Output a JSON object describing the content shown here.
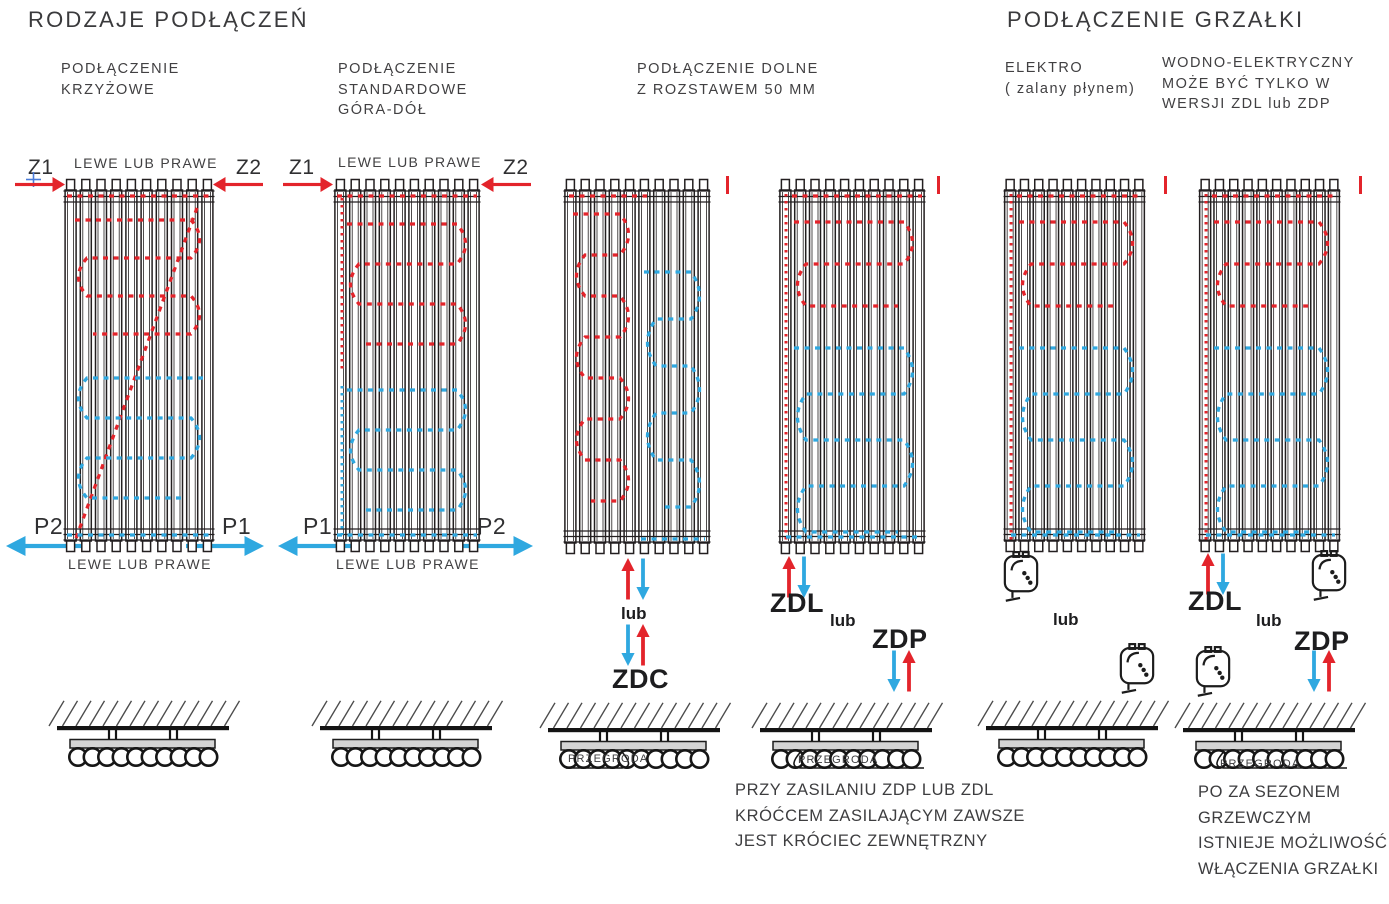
{
  "page": {
    "title_left": "RODZAJE PODŁĄCZEŃ",
    "title_right": "PODŁĄCZENIE GRZAŁKI"
  },
  "sections": {
    "krzyzowe": {
      "title": "PODŁĄCZENIE\nKRZYŻOWE",
      "top_label": "LEWE LUB PRAWE",
      "bottom_label": "LEWE LUB PRAWE"
    },
    "standardowe": {
      "title": "PODŁĄCZENIE\nSTANDARDOWE\nGÓRA-DÓŁ",
      "top_label": "LEWE LUB PRAWE",
      "bottom_label": "LEWE LUB PRAWE"
    },
    "dolne": {
      "title": "PODŁĄCZENIE DOLNE\nZ ROZSTAWEM 50 MM",
      "or": "lub",
      "variant_1": "ZDC"
    },
    "dolne_zdl_zdp": {
      "variant_left": "ZDL",
      "or": "lub",
      "variant_right": "ZDP"
    },
    "elektro": {
      "title": "ELEKTRO\n( zalany płynem)",
      "or": "lub"
    },
    "wodno_elektryczny": {
      "title": "WODNO-ELEKTRYCZNY\nMOŻE BYĆ TYLKO W\nWERSJI ZDL lub ZDP",
      "variant_left": "ZDL",
      "or": "lub",
      "variant_right": "ZDP"
    }
  },
  "ports": {
    "z1": "Z1",
    "z2": "Z2",
    "p1": "P1",
    "p2": "P2"
  },
  "wall_section_label": "PRZEGRODA",
  "notes": {
    "zdp_zdl": "PRZY ZASILANIU ZDP LUB ZDL\nKRÓĆCEM ZASILAJĄCYM ZAWSZE\nJEST KRÓCIEC ZEWNĘTRZNY",
    "heater_offseason": "PO ZA SEZONEM\nGRZEWCZYM\nISTNIEJE MOŻLIWOŚĆ\nWŁĄCZENIA GRZAŁKI"
  },
  "colors": {
    "hot": "#e3242b",
    "cold": "#2fa8e0",
    "line": "#231f20",
    "text": "#414042"
  }
}
